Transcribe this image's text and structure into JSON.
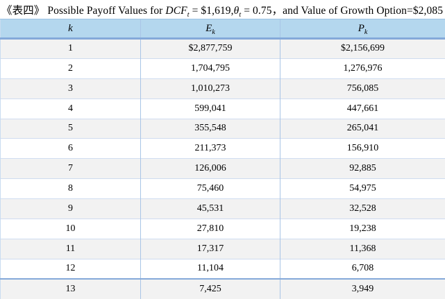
{
  "title": {
    "table_label": "《表四》",
    "text_before_math": " Possible Payoff Values for  ",
    "math1_var": "DCF",
    "math1_sub": "t",
    "math1_rest": " = $1,619,",
    "math2_var": "θ",
    "math2_sub": "t",
    "math2_rest": " = 0.75",
    "separator": "，",
    "text_after": "and Value of Growth Option=$2,085"
  },
  "table": {
    "columns": [
      {
        "var": "k",
        "sub": ""
      },
      {
        "var": "E",
        "sub": "k"
      },
      {
        "var": "P",
        "sub": "k"
      }
    ],
    "rows": [
      {
        "k": "1",
        "e": "$2,877,759",
        "p": "$2,156,699"
      },
      {
        "k": "2",
        "e": "1,704,795",
        "p": "1,276,976"
      },
      {
        "k": "3",
        "e": "1,010,273",
        "p": "756,085"
      },
      {
        "k": "4",
        "e": "599,041",
        "p": "447,661"
      },
      {
        "k": "5",
        "e": "355,548",
        "p": "265,041"
      },
      {
        "k": "6",
        "e": "211,373",
        "p": "156,910"
      },
      {
        "k": "7",
        "e": "126,006",
        "p": "92,885"
      },
      {
        "k": "8",
        "e": "75,460",
        "p": "54,975"
      },
      {
        "k": "9",
        "e": "45,531",
        "p": "32,528"
      },
      {
        "k": "10",
        "e": "27,810",
        "p": "19,238"
      },
      {
        "k": "11",
        "e": "17,317",
        "p": "11,368"
      },
      {
        "k": "12",
        "e": "11,104",
        "p": "6,708"
      },
      {
        "k": "13",
        "e": "7,425",
        "p": "3,949"
      }
    ]
  },
  "colors": {
    "header_bg": "#b4d7ee",
    "header_border": "#84a9d9",
    "alt_row_bg": "#f2f2f2",
    "row_line": "#cfdcf0",
    "column_line": "#a9c5e6",
    "text": "#000000"
  }
}
